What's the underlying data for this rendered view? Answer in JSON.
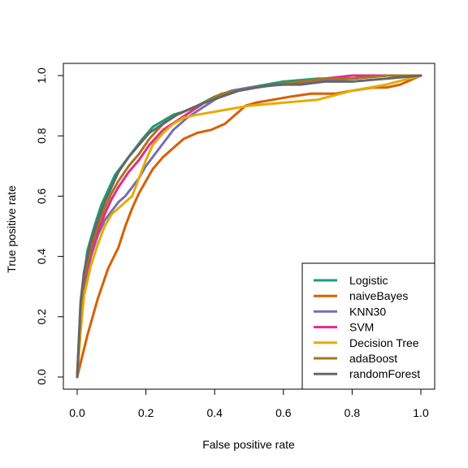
{
  "chart_data": {
    "type": "line",
    "title": "",
    "xlabel": "False positive rate",
    "ylabel": "True positive rate",
    "xlim": [
      0,
      1
    ],
    "ylim": [
      0,
      1
    ],
    "x_ticks": [
      "0.0",
      "0.2",
      "0.4",
      "0.6",
      "0.8",
      "1.0"
    ],
    "y_ticks": [
      "0.0",
      "0.2",
      "0.4",
      "0.6",
      "0.8",
      "1.0"
    ],
    "grid": false,
    "legend_position": "bottom-right",
    "series": [
      {
        "name": "Logistic",
        "color": "#1b9e77",
        "x": [
          0,
          0.01,
          0.02,
          0.03,
          0.05,
          0.07,
          0.09,
          0.11,
          0.13,
          0.15,
          0.17,
          0.19,
          0.22,
          0.25,
          0.28,
          0.31,
          0.35,
          0.4,
          0.45,
          0.5,
          0.55,
          0.6,
          0.7,
          0.8,
          0.9,
          1.0
        ],
        "y": [
          0,
          0.24,
          0.34,
          0.42,
          0.5,
          0.57,
          0.62,
          0.67,
          0.7,
          0.73,
          0.76,
          0.79,
          0.83,
          0.85,
          0.87,
          0.88,
          0.9,
          0.93,
          0.95,
          0.96,
          0.97,
          0.98,
          0.99,
          0.99,
          1.0,
          1.0
        ]
      },
      {
        "name": "naiveBayes",
        "color": "#d95f02",
        "x": [
          0,
          0.03,
          0.06,
          0.09,
          0.12,
          0.14,
          0.16,
          0.18,
          0.2,
          0.22,
          0.25,
          0.28,
          0.31,
          0.35,
          0.39,
          0.43,
          0.46,
          0.49,
          0.52,
          0.57,
          0.62,
          0.68,
          0.72,
          0.75,
          0.8,
          0.86,
          0.9,
          0.94,
          1.0
        ],
        "y": [
          0,
          0.14,
          0.26,
          0.36,
          0.43,
          0.5,
          0.56,
          0.61,
          0.65,
          0.69,
          0.73,
          0.76,
          0.79,
          0.81,
          0.82,
          0.84,
          0.87,
          0.9,
          0.91,
          0.92,
          0.93,
          0.94,
          0.94,
          0.94,
          0.95,
          0.96,
          0.96,
          0.97,
          1.0
        ]
      },
      {
        "name": "KNN30",
        "color": "#7570b3",
        "x": [
          0,
          0.01,
          0.02,
          0.04,
          0.06,
          0.08,
          0.1,
          0.12,
          0.14,
          0.16,
          0.18,
          0.2,
          0.24,
          0.28,
          0.32,
          0.36,
          0.4,
          0.45,
          0.5,
          0.6,
          0.7,
          0.8,
          0.9,
          1.0
        ],
        "y": [
          0,
          0.2,
          0.3,
          0.4,
          0.47,
          0.52,
          0.55,
          0.58,
          0.6,
          0.63,
          0.66,
          0.7,
          0.76,
          0.82,
          0.86,
          0.89,
          0.92,
          0.95,
          0.96,
          0.97,
          0.98,
          0.99,
          1.0,
          1.0
        ]
      },
      {
        "name": "SVM",
        "color": "#e7298a",
        "x": [
          0,
          0.01,
          0.02,
          0.04,
          0.06,
          0.08,
          0.1,
          0.12,
          0.15,
          0.18,
          0.21,
          0.25,
          0.29,
          0.33,
          0.37,
          0.42,
          0.47,
          0.52,
          0.58,
          0.65,
          0.72,
          0.8,
          0.9,
          1.0
        ],
        "y": [
          0,
          0.22,
          0.32,
          0.41,
          0.48,
          0.54,
          0.59,
          0.63,
          0.68,
          0.72,
          0.77,
          0.82,
          0.85,
          0.88,
          0.91,
          0.93,
          0.95,
          0.96,
          0.97,
          0.98,
          0.99,
          1.0,
          1.0,
          1.0
        ]
      },
      {
        "name": "Decision Tree",
        "color": "#e6ab02",
        "x": [
          0,
          0.01,
          0.02,
          0.04,
          0.06,
          0.08,
          0.1,
          0.12,
          0.14,
          0.16,
          0.18,
          0.2,
          0.22,
          0.25,
          0.28,
          0.31,
          0.35,
          0.4,
          0.5,
          0.6,
          0.7,
          0.8,
          0.85,
          0.9,
          1.0
        ],
        "y": [
          0,
          0.15,
          0.27,
          0.37,
          0.44,
          0.5,
          0.54,
          0.56,
          0.58,
          0.6,
          0.66,
          0.72,
          0.77,
          0.81,
          0.84,
          0.86,
          0.87,
          0.88,
          0.9,
          0.91,
          0.92,
          0.95,
          0.96,
          0.97,
          1.0
        ]
      },
      {
        "name": "adaBoost",
        "color": "#a6761d",
        "x": [
          0,
          0.01,
          0.02,
          0.04,
          0.06,
          0.08,
          0.1,
          0.12,
          0.15,
          0.18,
          0.21,
          0.25,
          0.29,
          0.33,
          0.37,
          0.42,
          0.47,
          0.52,
          0.58,
          0.65,
          0.72,
          0.8,
          0.9,
          1.0
        ],
        "y": [
          0,
          0.23,
          0.33,
          0.43,
          0.5,
          0.56,
          0.61,
          0.65,
          0.7,
          0.74,
          0.79,
          0.84,
          0.87,
          0.89,
          0.91,
          0.94,
          0.95,
          0.96,
          0.97,
          0.98,
          0.99,
          0.99,
          1.0,
          1.0
        ]
      },
      {
        "name": "randomForest",
        "color": "#666666",
        "x": [
          0,
          0.01,
          0.02,
          0.04,
          0.06,
          0.08,
          0.1,
          0.12,
          0.15,
          0.18,
          0.21,
          0.25,
          0.29,
          0.33,
          0.37,
          0.42,
          0.47,
          0.52,
          0.58,
          0.65,
          0.72,
          0.8,
          0.9,
          1.0
        ],
        "y": [
          0,
          0.25,
          0.35,
          0.45,
          0.52,
          0.58,
          0.63,
          0.68,
          0.73,
          0.77,
          0.81,
          0.84,
          0.87,
          0.89,
          0.91,
          0.93,
          0.95,
          0.96,
          0.97,
          0.97,
          0.98,
          0.98,
          0.99,
          1.0
        ]
      }
    ]
  }
}
